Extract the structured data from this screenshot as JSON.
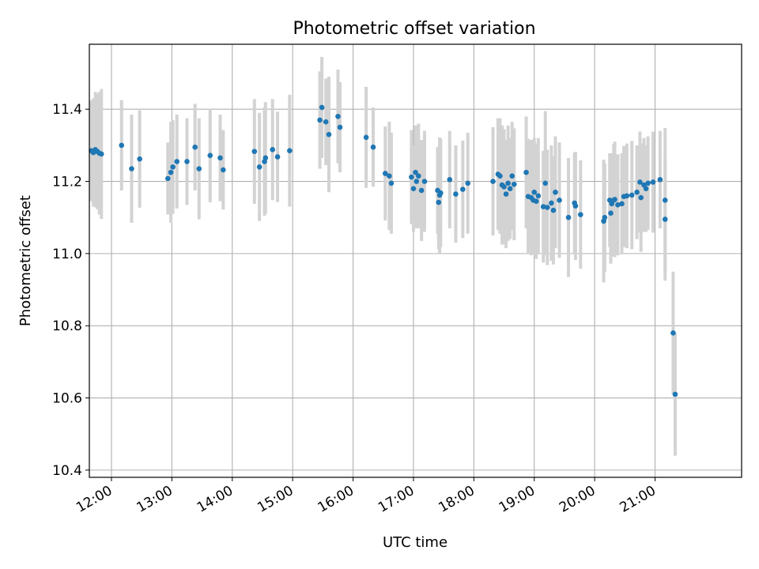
{
  "chart_data": {
    "type": "scatter",
    "title": "Photometric offset variation",
    "xlabel": "UTC time",
    "ylabel": "Photometric offset",
    "x_tick_labels": [
      "12:00",
      "13:00",
      "14:00",
      "15:00",
      "16:00",
      "17:00",
      "18:00",
      "19:00",
      "20:00",
      "21:00"
    ],
    "y_tick_labels": [
      "10.4",
      "10.6",
      "10.8",
      "11.0",
      "11.2",
      "11.4"
    ],
    "xlim": [
      "11:38",
      "22:26"
    ],
    "ylim": [
      10.38,
      11.58
    ],
    "grid": true,
    "point_color": "#1f77b4",
    "errorbar_color": "#d3d3d3",
    "series": [
      {
        "points": [
          {
            "x": "11:40",
            "y": 11.285,
            "err": 0.14
          },
          {
            "x": "11:42",
            "y": 11.28,
            "err": 0.15
          },
          {
            "x": "11:44",
            "y": 11.288,
            "err": 0.16
          },
          {
            "x": "11:46",
            "y": 11.283,
            "err": 0.16
          },
          {
            "x": "11:48",
            "y": 11.278,
            "err": 0.17
          },
          {
            "x": "11:50",
            "y": 11.276,
            "err": 0.18
          },
          {
            "x": "12:10",
            "y": 11.3,
            "err": 0.125
          },
          {
            "x": "12:20",
            "y": 11.235,
            "err": 0.15
          },
          {
            "x": "12:28",
            "y": 11.262,
            "err": 0.135
          },
          {
            "x": "12:56",
            "y": 11.208,
            "err": 0.1
          },
          {
            "x": "12:59",
            "y": 11.225,
            "err": 0.14
          },
          {
            "x": "13:01",
            "y": 11.24,
            "err": 0.13
          },
          {
            "x": "13:05",
            "y": 11.255,
            "err": 0.13
          },
          {
            "x": "13:15",
            "y": 11.255,
            "err": 0.12
          },
          {
            "x": "13:23",
            "y": 11.295,
            "err": 0.12
          },
          {
            "x": "13:27",
            "y": 11.235,
            "err": 0.14
          },
          {
            "x": "13:38",
            "y": 11.272,
            "err": 0.13
          },
          {
            "x": "13:48",
            "y": 11.265,
            "err": 0.12
          },
          {
            "x": "13:51",
            "y": 11.232,
            "err": 0.11
          },
          {
            "x": "14:22",
            "y": 11.283,
            "err": 0.145
          },
          {
            "x": "14:27",
            "y": 11.24,
            "err": 0.15
          },
          {
            "x": "14:32",
            "y": 11.255,
            "err": 0.15
          },
          {
            "x": "14:33",
            "y": 11.265,
            "err": 0.155
          },
          {
            "x": "14:40",
            "y": 11.288,
            "err": 0.14
          },
          {
            "x": "14:45",
            "y": 11.268,
            "err": 0.125
          },
          {
            "x": "14:57",
            "y": 11.285,
            "err": 0.155
          },
          {
            "x": "15:27",
            "y": 11.37,
            "err": 0.135
          },
          {
            "x": "15:29",
            "y": 11.405,
            "err": 0.14
          },
          {
            "x": "15:33",
            "y": 11.365,
            "err": 0.12
          },
          {
            "x": "15:36",
            "y": 11.33,
            "err": 0.16
          },
          {
            "x": "15:45",
            "y": 11.38,
            "err": 0.13
          },
          {
            "x": "15:47",
            "y": 11.35,
            "err": 0.125
          },
          {
            "x": "16:13",
            "y": 11.322,
            "err": 0.14
          },
          {
            "x": "16:20",
            "y": 11.295,
            "err": 0.11
          },
          {
            "x": "16:32",
            "y": 11.222,
            "err": 0.13
          },
          {
            "x": "16:36",
            "y": 11.215,
            "err": 0.15
          },
          {
            "x": "16:38",
            "y": 11.195,
            "err": 0.14
          },
          {
            "x": "16:58",
            "y": 11.212,
            "err": 0.13
          },
          {
            "x": "17:00",
            "y": 11.18,
            "err": 0.12
          },
          {
            "x": "17:02",
            "y": 11.225,
            "err": 0.13
          },
          {
            "x": "17:03",
            "y": 11.2,
            "err": 0.13
          },
          {
            "x": "17:05",
            "y": 11.215,
            "err": 0.145
          },
          {
            "x": "17:08",
            "y": 11.175,
            "err": 0.14
          },
          {
            "x": "17:11",
            "y": 11.2,
            "err": 0.14
          },
          {
            "x": "17:24",
            "y": 11.175,
            "err": 0.12
          },
          {
            "x": "17:25",
            "y": 11.142,
            "err": 0.13
          },
          {
            "x": "17:26",
            "y": 11.162,
            "err": 0.16
          },
          {
            "x": "17:27",
            "y": 11.168,
            "err": 0.15
          },
          {
            "x": "17:36",
            "y": 11.205,
            "err": 0.135
          },
          {
            "x": "17:42",
            "y": 11.165,
            "err": 0.135
          },
          {
            "x": "17:49",
            "y": 11.178,
            "err": 0.135
          },
          {
            "x": "17:54",
            "y": 11.195,
            "err": 0.14
          },
          {
            "x": "18:19",
            "y": 11.2,
            "err": 0.15
          },
          {
            "x": "18:24",
            "y": 11.22,
            "err": 0.155
          },
          {
            "x": "18:26",
            "y": 11.215,
            "err": 0.16
          },
          {
            "x": "18:28",
            "y": 11.19,
            "err": 0.165
          },
          {
            "x": "18:30",
            "y": 11.185,
            "err": 0.16
          },
          {
            "x": "18:32",
            "y": 11.165,
            "err": 0.15
          },
          {
            "x": "18:34",
            "y": 11.195,
            "err": 0.16
          },
          {
            "x": "18:36",
            "y": 11.18,
            "err": 0.14
          },
          {
            "x": "18:38",
            "y": 11.215,
            "err": 0.15
          },
          {
            "x": "18:40",
            "y": 11.192,
            "err": 0.155
          },
          {
            "x": "18:52",
            "y": 11.225,
            "err": 0.155
          },
          {
            "x": "18:54",
            "y": 11.158,
            "err": 0.16
          },
          {
            "x": "18:57",
            "y": 11.155,
            "err": 0.16
          },
          {
            "x": "18:59",
            "y": 11.148,
            "err": 0.15
          },
          {
            "x": "19:00",
            "y": 11.17,
            "err": 0.15
          },
          {
            "x": "19:02",
            "y": 11.145,
            "err": 0.16
          },
          {
            "x": "19:04",
            "y": 11.16,
            "err": 0.16
          },
          {
            "x": "19:09",
            "y": 11.13,
            "err": 0.155
          },
          {
            "x": "19:11",
            "y": 11.195,
            "err": 0.2
          },
          {
            "x": "19:13",
            "y": 11.128,
            "err": 0.16
          },
          {
            "x": "19:17",
            "y": 11.14,
            "err": 0.16
          },
          {
            "x": "19:19",
            "y": 11.12,
            "err": 0.15
          },
          {
            "x": "19:21",
            "y": 11.17,
            "err": 0.155
          },
          {
            "x": "19:25",
            "y": 11.148,
            "err": 0.16
          },
          {
            "x": "19:34",
            "y": 11.1,
            "err": 0.165
          },
          {
            "x": "19:40",
            "y": 11.14,
            "err": 0.14
          },
          {
            "x": "19:41",
            "y": 11.132,
            "err": 0.15
          },
          {
            "x": "19:46",
            "y": 11.108,
            "err": 0.15
          },
          {
            "x": "20:09",
            "y": 11.09,
            "err": 0.17
          },
          {
            "x": "20:10",
            "y": 11.1,
            "err": 0.15
          },
          {
            "x": "20:15",
            "y": 11.148,
            "err": 0.13
          },
          {
            "x": "20:16",
            "y": 11.112,
            "err": 0.14
          },
          {
            "x": "20:17",
            "y": 11.138,
            "err": 0.14
          },
          {
            "x": "20:19",
            "y": 11.148,
            "err": 0.155
          },
          {
            "x": "20:20",
            "y": 11.15,
            "err": 0.16
          },
          {
            "x": "20:23",
            "y": 11.135,
            "err": 0.14
          },
          {
            "x": "20:27",
            "y": 11.138,
            "err": 0.14
          },
          {
            "x": "20:29",
            "y": 11.158,
            "err": 0.14
          },
          {
            "x": "20:32",
            "y": 11.16,
            "err": 0.145
          },
          {
            "x": "20:37",
            "y": 11.162,
            "err": 0.15
          },
          {
            "x": "20:42",
            "y": 11.17,
            "err": 0.13
          },
          {
            "x": "20:45",
            "y": 11.198,
            "err": 0.14
          },
          {
            "x": "20:46",
            "y": 11.155,
            "err": 0.15
          },
          {
            "x": "20:49",
            "y": 11.19,
            "err": 0.13
          },
          {
            "x": "20:51",
            "y": 11.18,
            "err": 0.12
          },
          {
            "x": "20:53",
            "y": 11.195,
            "err": 0.13
          },
          {
            "x": "20:58",
            "y": 11.198,
            "err": 0.14
          },
          {
            "x": "21:05",
            "y": 11.205,
            "err": 0.135
          },
          {
            "x": "21:10",
            "y": 11.095,
            "err": 0.17
          },
          {
            "x": "21:10",
            "y": 11.148,
            "err": 0.2
          },
          {
            "x": "21:18",
            "y": 10.78,
            "err": 0.17
          },
          {
            "x": "21:20",
            "y": 10.61,
            "err": 0.17
          }
        ]
      }
    ]
  }
}
